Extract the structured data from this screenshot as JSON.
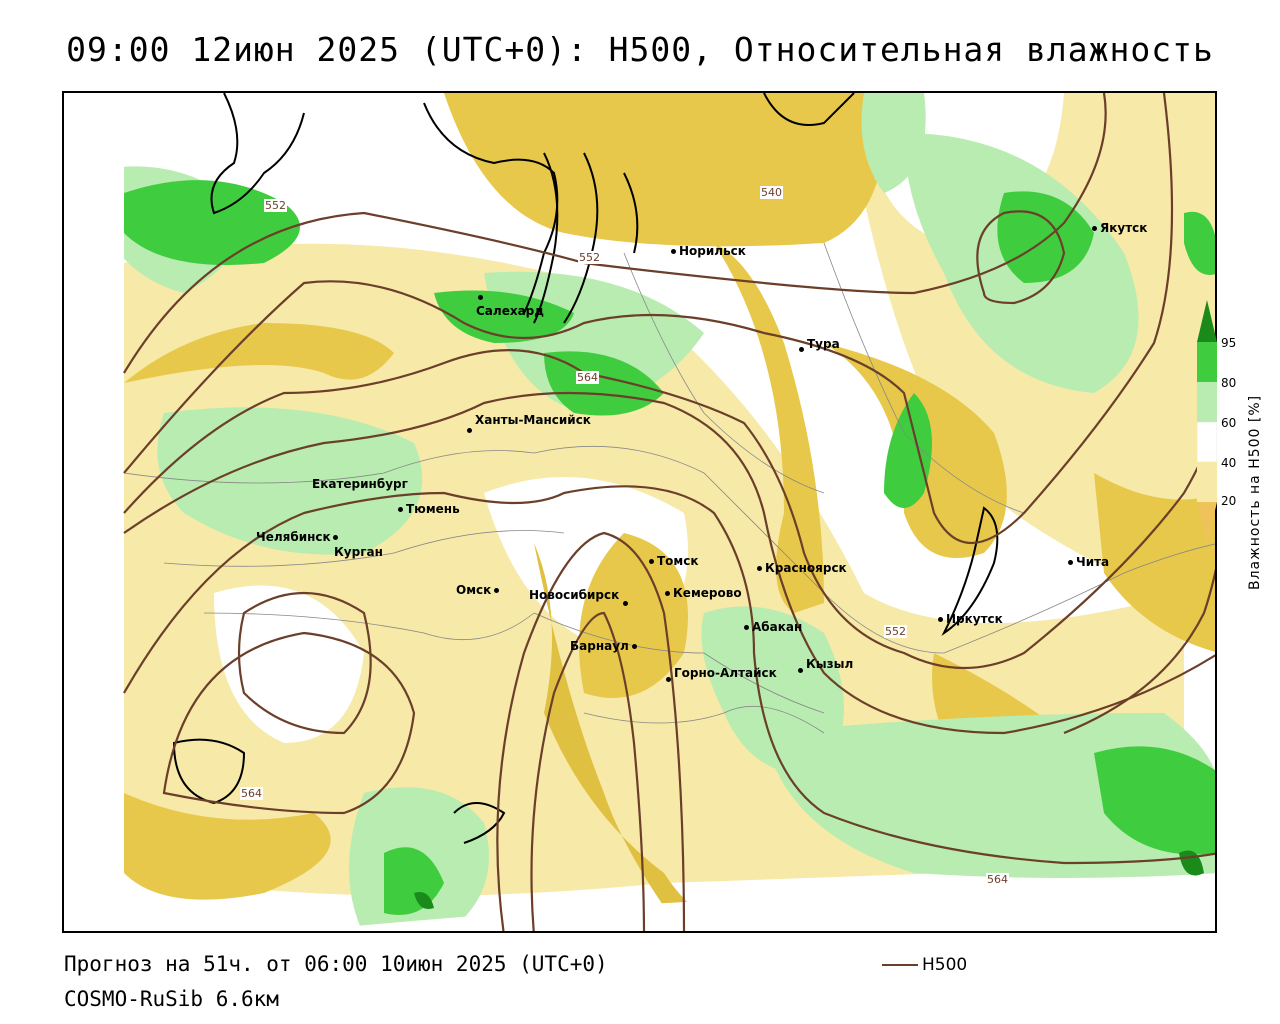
{
  "title": "09:00 12июн 2025 (UTC+0): H500, Относительная влажность",
  "footer": {
    "forecast": "Прогноз на 51ч. от 06:00 10июн 2025 (UTC+0)",
    "model": "COSMO-RuSib 6.6км",
    "legend_h500": "H500"
  },
  "colorbar": {
    "title": "Влажность на H500 [%]",
    "ticks": [
      "95",
      "80",
      "60",
      "40",
      "20"
    ],
    "colors": {
      "lt20": "#f0c35a",
      "20_40": "#f7e9a8",
      "40_60": "#ffffff",
      "60_80": "#b8ecb0",
      "80_95": "#3fcc3f",
      "gt95": "#1a8a1a"
    }
  },
  "isohypse_labels": [
    "552",
    "540",
    "552",
    "564",
    "552",
    "564",
    "564"
  ],
  "cities": [
    {
      "name": "Якутск"
    },
    {
      "name": "Норильск"
    },
    {
      "name": "Салехард"
    },
    {
      "name": "Тура"
    },
    {
      "name": "Ханты-Мансийск"
    },
    {
      "name": "Екатеринбург"
    },
    {
      "name": "Тюмень"
    },
    {
      "name": "Челябинск"
    },
    {
      "name": "Курган"
    },
    {
      "name": "Омск"
    },
    {
      "name": "Томск"
    },
    {
      "name": "Красноярск"
    },
    {
      "name": "Чита"
    },
    {
      "name": "Новосибирск"
    },
    {
      "name": "Кемерово"
    },
    {
      "name": "Абакан"
    },
    {
      "name": "Иркутск"
    },
    {
      "name": "Барнаул"
    },
    {
      "name": "Кызыл"
    },
    {
      "name": "Горно-Алтайск"
    }
  ]
}
